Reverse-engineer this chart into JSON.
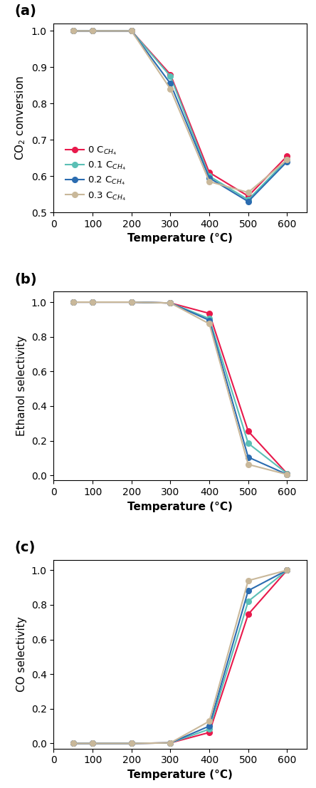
{
  "temperature": [
    50,
    100,
    200,
    300,
    400,
    500,
    600
  ],
  "panel_a": {
    "ylabel": "CO$_2$ conversion",
    "ylim": [
      0.5,
      1.02
    ],
    "yticks": [
      0.5,
      0.6,
      0.7,
      0.8,
      0.9,
      1.0
    ],
    "series": {
      "0": [
        1.0,
        1.0,
        1.0,
        0.88,
        0.61,
        0.545,
        0.655
      ],
      "0.1": [
        1.0,
        1.0,
        1.0,
        0.875,
        0.6,
        0.535,
        0.645
      ],
      "0.2": [
        1.0,
        1.0,
        1.0,
        0.855,
        0.595,
        0.53,
        0.64
      ],
      "0.3": [
        1.0,
        1.0,
        1.0,
        0.84,
        0.585,
        0.555,
        0.645
      ]
    }
  },
  "panel_b": {
    "ylabel": "Ethanol selectivity",
    "ylim": [
      -0.03,
      1.06
    ],
    "yticks": [
      0.0,
      0.2,
      0.4,
      0.6,
      0.8,
      1.0
    ],
    "series": {
      "0": [
        1.0,
        1.0,
        1.0,
        0.995,
        0.935,
        0.255,
        0.01
      ],
      "0.1": [
        1.0,
        1.0,
        1.0,
        0.995,
        0.905,
        0.185,
        0.01
      ],
      "0.2": [
        1.0,
        1.0,
        1.0,
        0.995,
        0.895,
        0.105,
        0.005
      ],
      "0.3": [
        1.0,
        1.0,
        1.0,
        0.995,
        0.875,
        0.063,
        0.005
      ]
    }
  },
  "panel_c": {
    "ylabel": "CO selectivity",
    "ylim": [
      -0.03,
      1.06
    ],
    "yticks": [
      0.0,
      0.2,
      0.4,
      0.6,
      0.8,
      1.0
    ],
    "series": {
      "0": [
        0.0,
        0.0,
        0.0,
        0.003,
        0.063,
        0.745,
        1.0
      ],
      "0.1": [
        0.0,
        0.0,
        0.0,
        0.003,
        0.082,
        0.82,
        1.0
      ],
      "0.2": [
        0.0,
        0.0,
        0.0,
        0.003,
        0.1,
        0.882,
        1.0
      ],
      "0.3": [
        0.0,
        0.0,
        0.0,
        0.003,
        0.128,
        0.94,
        1.0
      ]
    }
  },
  "colors": {
    "0": "#e8194b",
    "0.1": "#5bbfb5",
    "0.2": "#2b6cb0",
    "0.3": "#c9b89a"
  },
  "legend_labels": {
    "0": "0 C$_{CH_4}$",
    "0.1": "0.1 C$_{CH_4}$",
    "0.2": "0.2 C$_{CH_4}$",
    "0.3": "0.3 C$_{CH_4}$"
  },
  "xlabel": "Temperature (°C)",
  "xlim": [
    0,
    650
  ],
  "xticks": [
    0,
    100,
    200,
    300,
    400,
    500,
    600
  ],
  "marker": "o",
  "markersize": 5.5,
  "linewidth": 1.5,
  "panel_labels": [
    "(a)",
    "(b)",
    "(c)"
  ],
  "figsize": [
    4.44,
    11.06
  ],
  "dpi": 100
}
